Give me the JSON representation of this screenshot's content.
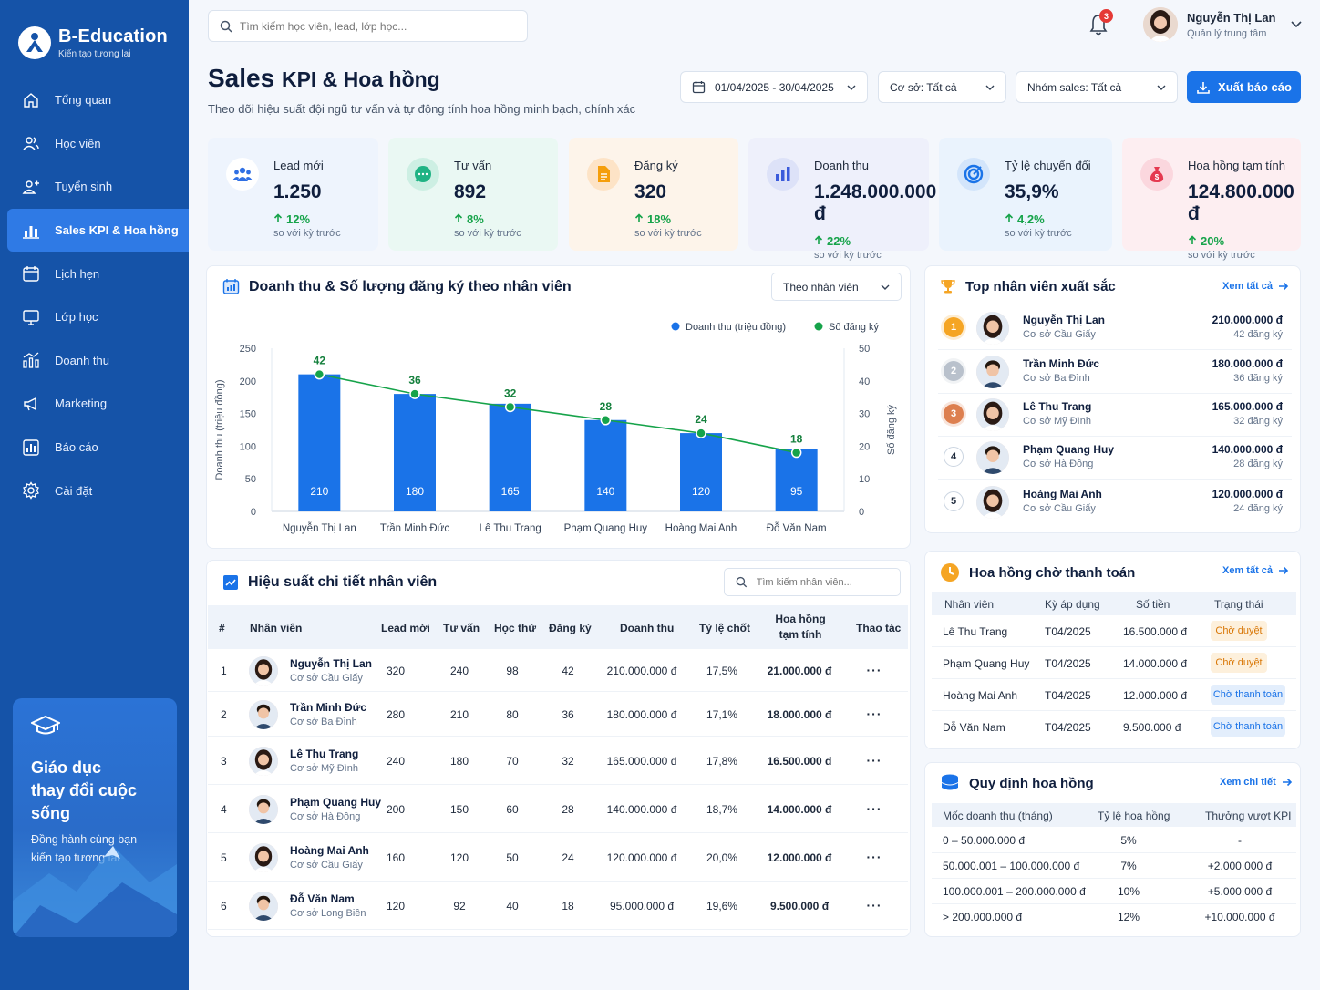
{
  "brand": {
    "name": "B-Education",
    "tagline": "Kiến tạo tương lai"
  },
  "sidebar": {
    "items": [
      {
        "label": "Tổng quan",
        "icon": "home-icon"
      },
      {
        "label": "Học viên",
        "icon": "users-icon"
      },
      {
        "label": "Tuyển sinh",
        "icon": "user-plus-icon"
      },
      {
        "label": "Sales KPI & Hoa hồng",
        "icon": "bar-chart-icon",
        "active": true
      },
      {
        "label": "Lịch hẹn",
        "icon": "calendar-icon"
      },
      {
        "label": "Lớp học",
        "icon": "monitor-icon"
      },
      {
        "label": "Doanh thu",
        "icon": "revenue-chart-icon"
      },
      {
        "label": "Marketing",
        "icon": "megaphone-icon"
      },
      {
        "label": "Báo cáo",
        "icon": "report-icon"
      },
      {
        "label": "Cài đặt",
        "icon": "gear-icon"
      }
    ],
    "promo": {
      "title_line1": "Giáo dục",
      "title_line2": "thay đổi cuộc sống",
      "sub_line1": "Đồng hành cùng bạn",
      "sub_line2": "kiến tạo tương lai"
    }
  },
  "topbar": {
    "search_placeholder": "Tìm kiếm học viên, lead, lớp học...",
    "notifications": "3",
    "user": {
      "name": "Nguyễn Thị Lan",
      "role": "Quản lý trung tâm"
    }
  },
  "header": {
    "title_a": "Sales",
    "title_b": "KPI & Hoa hồng",
    "subtitle": "Theo dõi hiệu suất đội ngũ tư vấn và tự động tính hoa hồng minh bạch, chính xác",
    "date_range": "01/04/2025 - 30/04/2025",
    "branch_filter": "Cơ sở: Tất cả",
    "group_filter": "Nhóm sales: Tất cả",
    "export_label": "Xuất báo cáo"
  },
  "kpis": [
    {
      "label": "Lead mới",
      "value": "1.250",
      "delta": "12%",
      "note": "so với kỳ trước",
      "icon": "users-group-icon",
      "color": "#2f6fe4",
      "bg": "#eef4fd",
      "iconbg": "#ffffff"
    },
    {
      "label": "Tư vấn",
      "value": "892",
      "delta": "8%",
      "note": "so với kỳ trước",
      "icon": "chat-icon",
      "color": "#1fb384",
      "bg": "#eaf8f3",
      "iconbg": "#cdefe3"
    },
    {
      "label": "Đăng ký",
      "value": "320",
      "delta": "18%",
      "note": "so với kỳ trước",
      "icon": "document-icon",
      "color": "#f59e0b",
      "bg": "#fdf4ea",
      "iconbg": "#fde3c6"
    },
    {
      "label": "Doanh thu",
      "value": "1.248.000.000 đ",
      "delta": "22%",
      "note": "so với kỳ trước",
      "icon": "revenue-bars-icon",
      "color": "#3b5bdb",
      "bg": "#eef0fb",
      "iconbg": "#dde2f8"
    },
    {
      "label": "Tỷ lệ chuyển đổi",
      "value": "35,9%",
      "delta": "4,2%",
      "note": "so với kỳ trước",
      "icon": "target-icon",
      "color": "#1a73e8",
      "bg": "#eaf3fd",
      "iconbg": "#d3e5fb"
    },
    {
      "label": "Hoa hồng tạm tính",
      "value": "124.800.000 đ",
      "delta": "20%",
      "note": "so với kỳ trước",
      "icon": "money-bag-icon",
      "color": "#e53950",
      "bg": "#fdeef1",
      "iconbg": "#fbd7de"
    }
  ],
  "chart_panel": {
    "title": "Doanh thu & Số lượng đăng ký theo nhân viên",
    "view_select": "Theo nhân viên"
  },
  "chart_data": {
    "type": "bar",
    "categories": [
      "Nguyễn Thị Lan",
      "Trần Minh Đức",
      "Lê Thu Trang",
      "Phạm Quang Huy",
      "Hoàng Mai Anh",
      "Đỗ Văn Nam"
    ],
    "series": [
      {
        "name": "Doanh thu (triệu đồng)",
        "type": "bar",
        "axis": "left",
        "values": [
          210,
          180,
          165,
          140,
          120,
          95
        ]
      },
      {
        "name": "Số đăng ký",
        "type": "line",
        "axis": "right",
        "values": [
          42,
          36,
          32,
          28,
          24,
          18
        ]
      }
    ],
    "ylabel": "Doanh thu (triệu đồng)",
    "y2label": "Số đăng ký",
    "ylim": [
      0,
      250
    ],
    "y2lim": [
      0,
      50
    ],
    "yticks": [
      0,
      50,
      100,
      150,
      200,
      250
    ],
    "y2ticks": [
      0,
      10,
      20,
      30,
      40,
      50
    ],
    "legend": "top-right",
    "grid": false
  },
  "table_panel": {
    "title": "Hiệu suất chi tiết nhân viên",
    "search_placeholder": "Tìm kiếm nhân viên...",
    "headers": [
      "#",
      "Nhân viên",
      "Lead mới",
      "Tư vấn",
      "Học thử",
      "Đăng ký",
      "Doanh thu",
      "Tỷ lệ chốt",
      "Hoa hồng",
      "tạm tính",
      "Thao tác"
    ],
    "rows": [
      {
        "idx": "1",
        "name": "Nguyễn Thị Lan",
        "branch": "Cơ sở Cầu Giấy",
        "lead": "320",
        "consult": "240",
        "trial": "98",
        "reg": "42",
        "revenue": "210.000.000 đ",
        "rate": "17,5%",
        "commission": "21.000.000 đ",
        "gender": "f"
      },
      {
        "idx": "2",
        "name": "Trần Minh Đức",
        "branch": "Cơ sở Ba Đình",
        "lead": "280",
        "consult": "210",
        "trial": "80",
        "reg": "36",
        "revenue": "180.000.000 đ",
        "rate": "17,1%",
        "commission": "18.000.000 đ",
        "gender": "m"
      },
      {
        "idx": "3",
        "name": "Lê Thu Trang",
        "branch": "Cơ sở Mỹ Đình",
        "lead": "240",
        "consult": "180",
        "trial": "70",
        "reg": "32",
        "revenue": "165.000.000 đ",
        "rate": "17,8%",
        "commission": "16.500.000 đ",
        "gender": "f"
      },
      {
        "idx": "4",
        "name": "Phạm Quang Huy",
        "branch": "Cơ sở Hà Đông",
        "lead": "200",
        "consult": "150",
        "trial": "60",
        "reg": "28",
        "revenue": "140.000.000 đ",
        "rate": "18,7%",
        "commission": "14.000.000 đ",
        "gender": "m"
      },
      {
        "idx": "5",
        "name": "Hoàng Mai Anh",
        "branch": "Cơ sở Cầu Giấy",
        "lead": "160",
        "consult": "120",
        "trial": "50",
        "reg": "24",
        "revenue": "120.000.000 đ",
        "rate": "20,0%",
        "commission": "12.000.000 đ",
        "gender": "f"
      },
      {
        "idx": "6",
        "name": "Đỗ Văn Nam",
        "branch": "Cơ sở Long Biên",
        "lead": "120",
        "consult": "92",
        "trial": "40",
        "reg": "18",
        "revenue": "95.000.000 đ",
        "rate": "19,6%",
        "commission": "9.500.000 đ",
        "gender": "m"
      }
    ],
    "action_label": "···"
  },
  "top_panel": {
    "title": "Top nhân viên xuất sắc",
    "link": "Xem tất cả",
    "items": [
      {
        "rank": "1",
        "name": "Nguyễn Thị Lan",
        "branch": "Cơ sở Cầu Giấy",
        "revenue": "210.000.000 đ",
        "regs": "42 đăng ký",
        "medal": "#f5a524",
        "gender": "f"
      },
      {
        "rank": "2",
        "name": "Trần Minh Đức",
        "branch": "Cơ sở Ba Đình",
        "revenue": "180.000.000 đ",
        "regs": "36 đăng ký",
        "medal": "#b9c1cc",
        "gender": "m"
      },
      {
        "rank": "3",
        "name": "Lê Thu Trang",
        "branch": "Cơ sở Mỹ Đình",
        "revenue": "165.000.000 đ",
        "regs": "32 đăng ký",
        "medal": "#dd7f4f",
        "gender": "f"
      },
      {
        "rank": "4",
        "name": "Phạm Quang Huy",
        "branch": "Cơ sở Hà Đông",
        "revenue": "140.000.000 đ",
        "regs": "28 đăng ký",
        "medal": "",
        "gender": "m"
      },
      {
        "rank": "5",
        "name": "Hoàng Mai Anh",
        "branch": "Cơ sở Cầu Giấy",
        "revenue": "120.000.000 đ",
        "regs": "24 đăng ký",
        "medal": "",
        "gender": "f"
      }
    ]
  },
  "pending_panel": {
    "title": "Hoa hồng chờ thanh toán",
    "link": "Xem tất cả",
    "headers": [
      "Nhân viên",
      "Kỳ áp dụng",
      "Số tiền",
      "Trạng thái"
    ],
    "rows": [
      {
        "name": "Lê Thu Trang",
        "period": "T04/2025",
        "amount": "16.500.000 đ",
        "status": "Chờ duyệt",
        "kind": "warn"
      },
      {
        "name": "Phạm Quang Huy",
        "period": "T04/2025",
        "amount": "14.000.000 đ",
        "status": "Chờ duyệt",
        "kind": "warn"
      },
      {
        "name": "Hoàng Mai Anh",
        "period": "T04/2025",
        "amount": "12.000.000 đ",
        "status": "Chờ thanh toán",
        "kind": "info"
      },
      {
        "name": "Đỗ Văn Nam",
        "period": "T04/2025",
        "amount": "9.500.000 đ",
        "status": "Chờ thanh toán",
        "kind": "info"
      }
    ]
  },
  "rules_panel": {
    "title": "Quy định hoa hồng",
    "link": "Xem chi tiết",
    "headers": [
      "Mốc doanh thu (tháng)",
      "Tỷ lệ hoa hồng",
      "Thưởng vượt KPI"
    ],
    "rows": [
      {
        "range": "0 – 50.000.000 đ",
        "rate": "5%",
        "bonus": "-"
      },
      {
        "range": "50.000.001 – 100.000.000 đ",
        "rate": "7%",
        "bonus": "+2.000.000 đ"
      },
      {
        "range": "100.000.001 – 200.000.000 đ",
        "rate": "10%",
        "bonus": "+5.000.000 đ"
      },
      {
        "range": "> 200.000.000 đ",
        "rate": "12%",
        "bonus": "+10.000.000 đ"
      }
    ]
  }
}
